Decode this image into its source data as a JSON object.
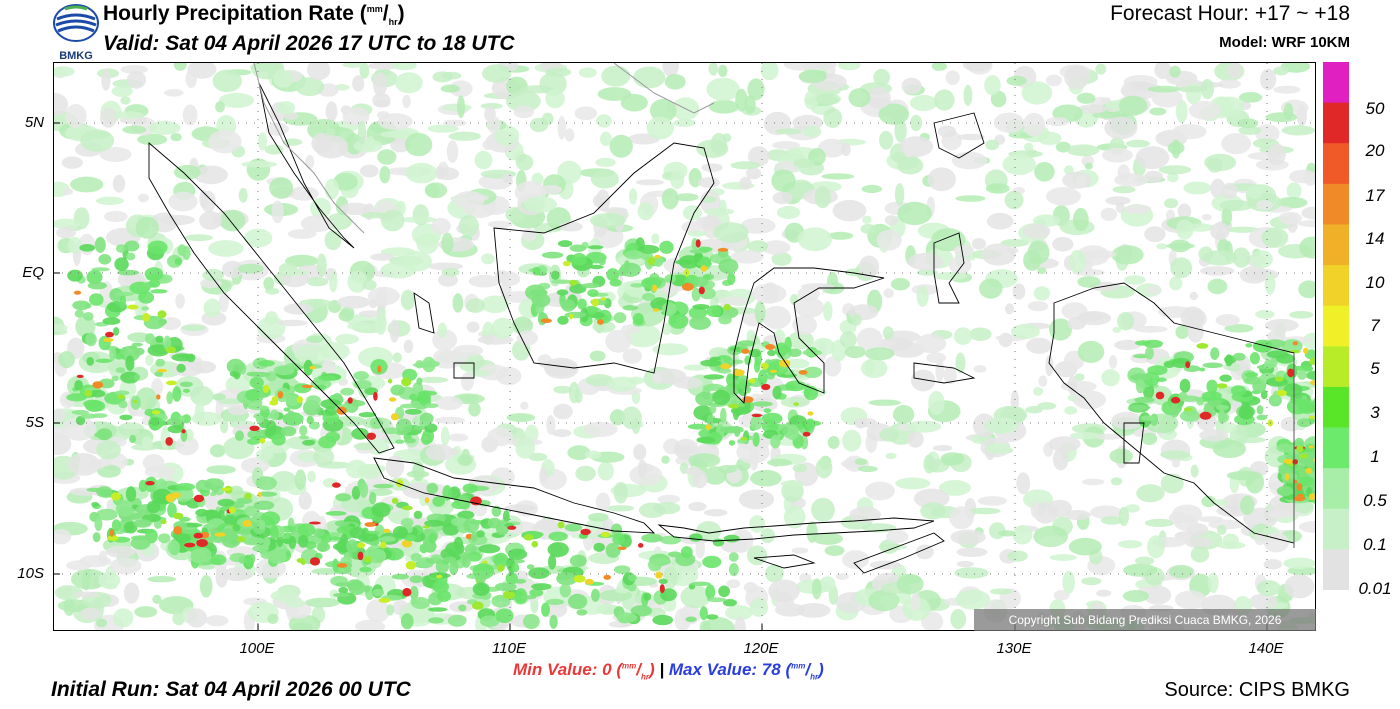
{
  "header": {
    "title_prefix": "Hourly Precipitation Rate (",
    "title_unit_num": "mm",
    "title_unit_den": "hr",
    "title_suffix": ")",
    "valid": "Valid: Sat 04 April 2026 17 UTC to 18 UTC",
    "forecast_hour": "Forecast Hour: +17 ~ +18",
    "model": "Model: WRF 10KM"
  },
  "logo": {
    "text": "BMKG",
    "icon": "bmkg-logo-icon"
  },
  "map": {
    "lat_labels": [
      "5N",
      "EQ",
      "5S",
      "10S"
    ],
    "lon_labels": [
      "100E",
      "110E",
      "120E",
      "130E",
      "140E"
    ],
    "copyright": "Copyright Sub Bidang Prediksi Cuaca BMKG, 2026"
  },
  "colorbar": {
    "labels": [
      "50",
      "20",
      "17",
      "14",
      "10",
      "7",
      "5",
      "3",
      "1",
      "0.5",
      "0.1",
      "0.01"
    ],
    "colors": [
      "#e020c0",
      "#e02828",
      "#f05a28",
      "#f08a28",
      "#f0b028",
      "#f0d228",
      "#f0f028",
      "#b8ec28",
      "#5ae628",
      "#6cea6c",
      "#a8eea8",
      "#c8f0c8",
      "#e2e2e2"
    ]
  },
  "footer": {
    "initial_run": "Initial Run: Sat 04 April 2026 00 UTC",
    "source": "Source: CIPS BMKG",
    "min_label": "Min Value:",
    "min_value": "0",
    "max_label": "Max Value:",
    "max_value": "78",
    "unit_num": "mm",
    "unit_den": "hr",
    "separator": "|"
  }
}
